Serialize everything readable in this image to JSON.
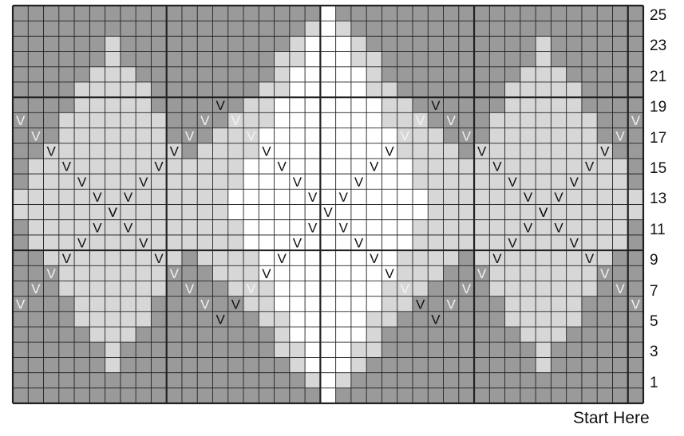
{
  "chart": {
    "columns": 41,
    "rows": 26,
    "row_numbers": [
      "25",
      "23",
      "21",
      "19",
      "17",
      "15",
      "13",
      "11",
      "9",
      "7",
      "5",
      "3",
      "1"
    ],
    "stitch_symbol": "V",
    "start_label": "Start Here",
    "colors": {
      "main": "#9a9a9a",
      "contrast_light": "#d7d7d7",
      "contrast_white": "#ffffff",
      "grid_line": "#222222",
      "symbol_dark": "#111111",
      "symbol_light": "#f2f2f2"
    }
  }
}
